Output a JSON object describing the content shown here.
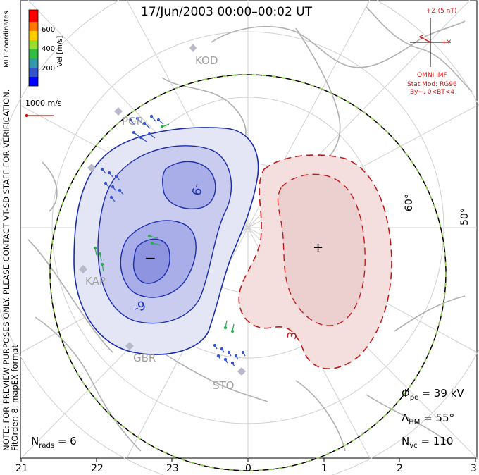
{
  "header": {
    "title": "17/Jun/2003 00:00–00:02 UT"
  },
  "colorbar": {
    "ticks": [
      "600",
      "400",
      "200"
    ],
    "label": "Vel [m/s]",
    "coords_label": "MLT coordinates",
    "colors": [
      "#ff0000",
      "#ff7700",
      "#ffcc00",
      "#99dd33",
      "#33bb44",
      "#3399aa",
      "#3355cc",
      "#0000ff"
    ]
  },
  "scale": {
    "label": "1000 m/s"
  },
  "imf": {
    "z_label": "+Z (5 nT)",
    "y_label": "+Y",
    "source": "OMNI IMF",
    "model": "Stat Mod: RG96",
    "condition": "By−, 0<BT<4"
  },
  "stations": [
    "KOD",
    "PGR",
    "KAP",
    "GBR",
    "STO"
  ],
  "latitude_labels": [
    "60°",
    "50°"
  ],
  "contour_labels": {
    "neg1": "-9",
    "neg2": "-9",
    "pos1": "3"
  },
  "markers": {
    "min": "−",
    "max": "+"
  },
  "stats": {
    "phi_sym": "Φ",
    "phi_sub": "pc",
    "phi_value": "= 39 kV",
    "lambda_sym": "Λ",
    "lambda_sub": "HM",
    "lambda_value": "= 55°",
    "nvc_sym": "N",
    "nvc_sub": "vc",
    "nvc_value": "= 110",
    "nrads_sym": "N",
    "nrads_sub": "rads",
    "nrads_value": "= 6"
  },
  "side_notes": {
    "note": "NOTE: FOR PREVIEW PURPOSES ONLY. PLEASE CONTACT VT-SD STAFF FOR VERIFICATION.",
    "fit": "FitOrder: 8,  mapEX format"
  },
  "mlt_ticks": [
    "21",
    "22",
    "23",
    "0",
    "1",
    "2",
    "3"
  ],
  "colors": {
    "negative_cell": "#1a2cb0",
    "positive_cell": "#c01a1a",
    "boundary_dash": "#8ad048",
    "grid": "#cfcfcf",
    "land": "#a8a8a8"
  }
}
